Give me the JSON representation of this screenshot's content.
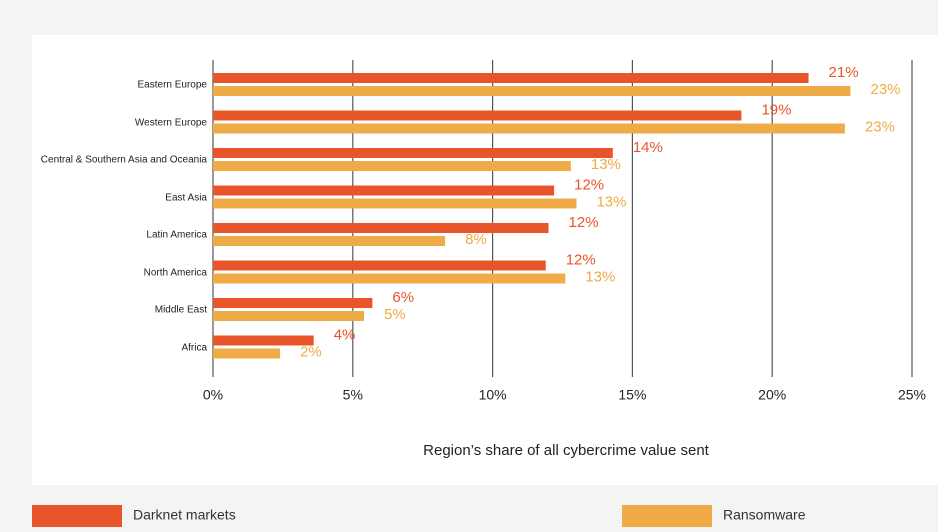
{
  "chart_data": {
    "type": "hbar",
    "x_axis_label": "Region’s share of all cybercrime value sent",
    "categories": [
      "Eastern Europe",
      "Western Europe",
      "Central & Southern Asia and Oceania",
      "East Asia",
      "Latin America",
      "North America",
      "Middle East",
      "Africa"
    ],
    "series": [
      {
        "name": "Darknet markets",
        "color": "#e8552b",
        "values": [
          21.3,
          18.9,
          14.3,
          12.2,
          12.0,
          11.9,
          5.7,
          3.6
        ],
        "value_labels": [
          "21%",
          "19%",
          "14%",
          "12%",
          "12%",
          "12%",
          "6%",
          "4%"
        ]
      },
      {
        "name": "Ransomware",
        "color": "#efab45",
        "values": [
          22.8,
          22.6,
          12.8,
          13.0,
          8.3,
          12.6,
          5.4,
          2.4
        ],
        "value_labels": [
          "23%",
          "23%",
          "13%",
          "13%",
          "8%",
          "13%",
          "5%",
          "2%"
        ]
      }
    ],
    "xlim": [
      0,
      25
    ],
    "xticks": [
      {
        "value": 0,
        "label": "0%"
      },
      {
        "value": 5,
        "label": "5%"
      },
      {
        "value": 10,
        "label": "10%"
      },
      {
        "value": 15,
        "label": "15%"
      },
      {
        "value": 20,
        "label": "20%"
      },
      {
        "value": 25,
        "label": "25%"
      }
    ],
    "grid": true
  }
}
